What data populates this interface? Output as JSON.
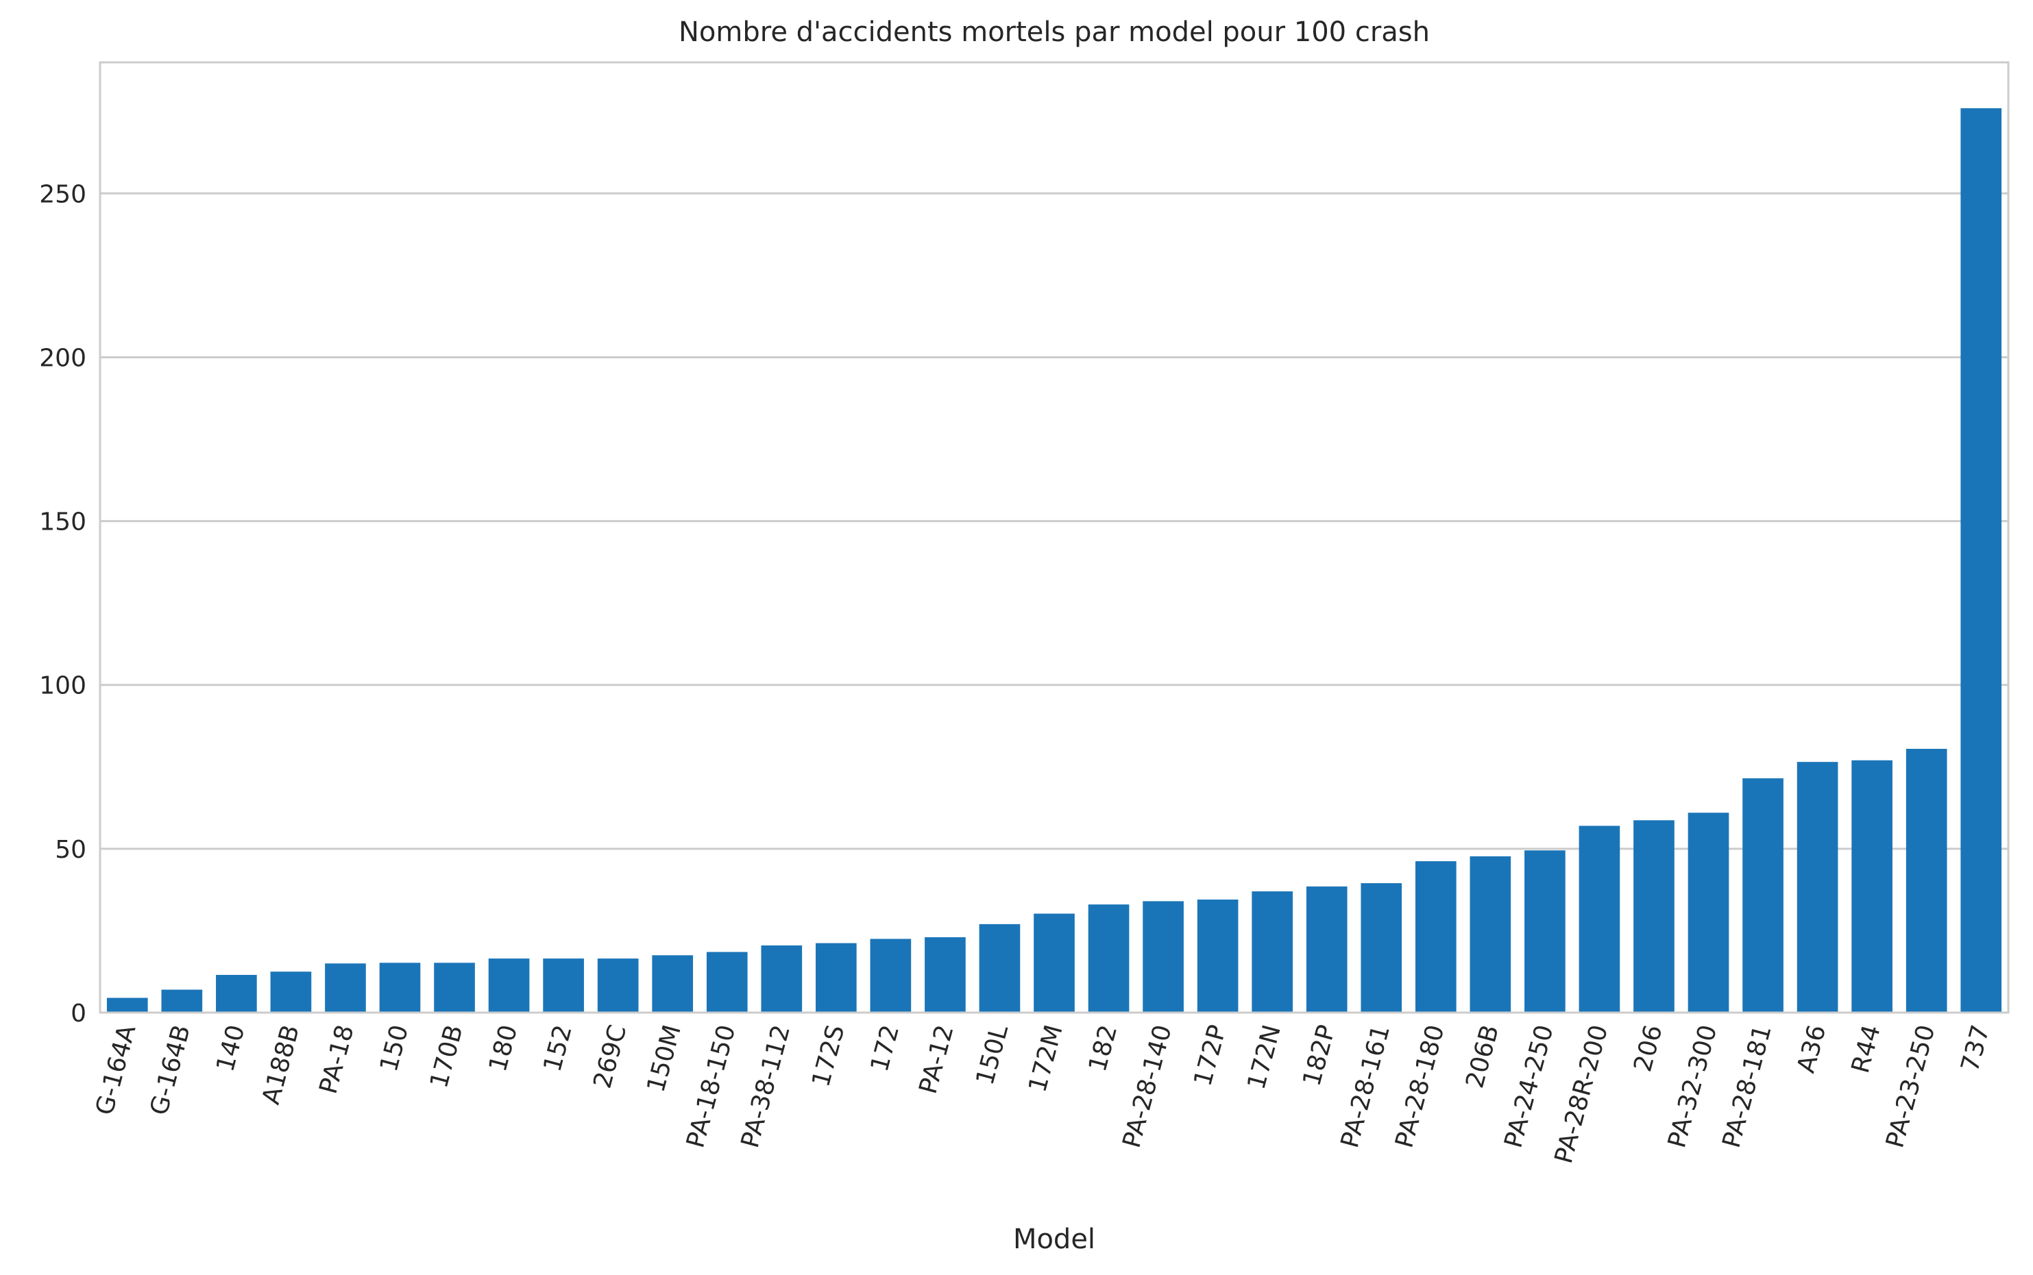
{
  "chart_data": {
    "type": "bar",
    "title": "Nombre d'accidents mortels par model pour 100 crash",
    "xlabel": "Model",
    "ylabel": "",
    "ylim": [
      0,
      290
    ],
    "yticks": [
      0,
      50,
      100,
      150,
      200,
      250
    ],
    "grid": "horizontal",
    "bar_color": "#1a75b8",
    "categories": [
      "G-164A",
      "G-164B",
      "140",
      "A188B",
      "PA-18",
      "150",
      "170B",
      "180",
      "152",
      "269C",
      "150M",
      "PA-18-150",
      "PA-38-112",
      "172S",
      "172",
      "PA-12",
      "150L",
      "172M",
      "182",
      "PA-28-140",
      "172P",
      "172N",
      "182P",
      "PA-28-161",
      "PA-28-180",
      "206B",
      "PA-24-250",
      "PA-28R-200",
      "206",
      "PA-32-300",
      "PA-28-181",
      "A36",
      "R44",
      "PA-23-250",
      "737"
    ],
    "values": [
      4.5,
      7,
      11.5,
      12.5,
      15,
      15.2,
      15.2,
      16.5,
      16.5,
      16.5,
      17.5,
      18.5,
      20.5,
      21.2,
      22.5,
      23,
      27,
      30.2,
      33,
      34,
      34.5,
      37,
      38.5,
      39.5,
      46.2,
      47.7,
      49.5,
      57,
      58.7,
      61,
      71.5,
      76.5,
      77,
      80.5,
      276
    ]
  }
}
